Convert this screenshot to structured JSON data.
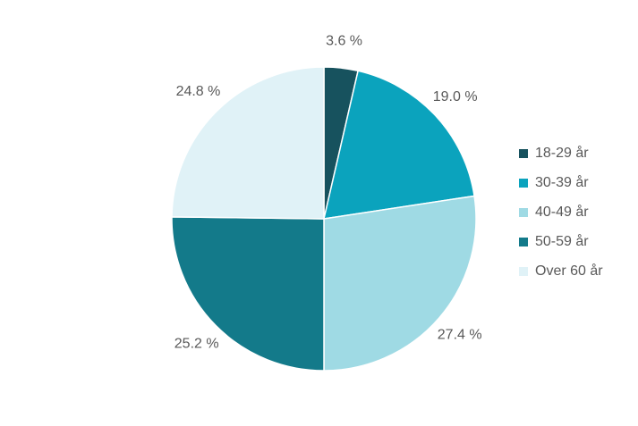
{
  "chart_data": {
    "type": "pie",
    "categories": [
      "18-29 år",
      "30-39 år",
      "40-49 år",
      "50-59 år",
      "Over 60 år"
    ],
    "values": [
      3.6,
      19.0,
      27.4,
      25.2,
      24.8
    ],
    "value_labels": [
      "3.6 %",
      "19.0 %",
      "27.4 %",
      "25.2 %",
      "24.8 %"
    ],
    "colors": [
      "#17525e",
      "#0ba3bd",
      "#9fdae4",
      "#137a8a",
      "#e0f2f7"
    ],
    "legend": "right"
  }
}
